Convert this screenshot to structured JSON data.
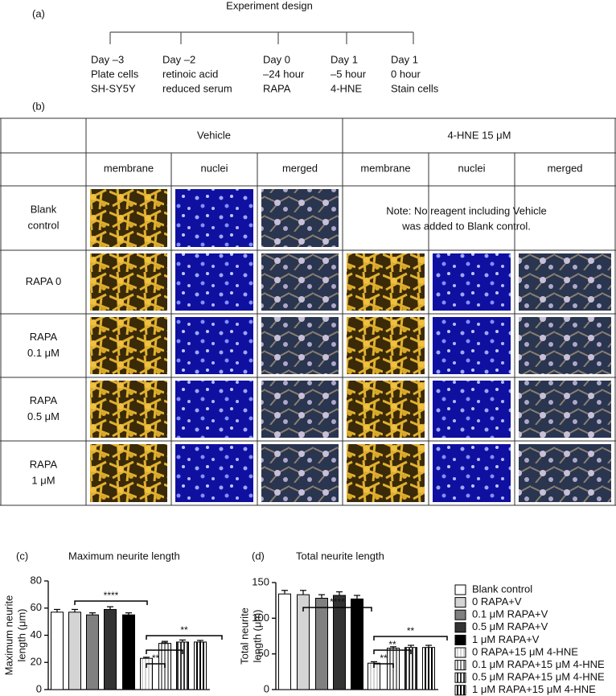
{
  "panel_a": {
    "label": "(a)",
    "title": "Experiment design",
    "steps": [
      [
        "Day –3",
        "Plate cells",
        "SH-SY5Y"
      ],
      [
        "Day –2",
        "retinoic acid",
        "reduced serum"
      ],
      [
        "Day 0",
        "–24 hour",
        "RAPA"
      ],
      [
        "Day 1",
        "–5 hour",
        "4-HNE"
      ],
      [
        "Day 1",
        "0 hour",
        "Stain cells"
      ]
    ]
  },
  "panel_b": {
    "label": "(b)",
    "groups": [
      "Vehicle",
      "4-HNE 15 μM"
    ],
    "channels": [
      "membrane",
      "nuclei",
      "merged"
    ],
    "rows": [
      [
        "Blank",
        "control"
      ],
      [
        "RAPA 0"
      ],
      [
        "RAPA",
        "0.1 μM"
      ],
      [
        "RAPA",
        "0.5 μM"
      ],
      [
        "RAPA",
        "1 μM"
      ]
    ],
    "note": [
      "Note: No reagent including Vehicle",
      "was added to Blank control."
    ]
  },
  "legend": [
    "Blank control",
    "0 RAPA+V",
    "0.1 μM RAPA+V",
    "0.5 μM RAPA+V",
    "1 μM RAPA+V",
    "0 RAPA+15 μM 4-HNE",
    "0.1 μM RAPA+15 μM 4-HNE",
    "0.5 μM RAPA+15 μM 4-HNE",
    "1 μM RAPA+15 μM 4-HNE"
  ],
  "chart_data": [
    {
      "type": "bar",
      "label": "(c)",
      "title": "Maximum neurite length",
      "ylabel": [
        "Maximum neurite",
        "length (μm)"
      ],
      "values": [
        57,
        57,
        55,
        59,
        55,
        23,
        34,
        35,
        35
      ],
      "errors": [
        2,
        2,
        1.5,
        2,
        1.5,
        0.8,
        1.5,
        1.5,
        1.2
      ],
      "colors": [
        "#ffffff",
        "#d4d4d4",
        "#808080",
        "#333333",
        "#000000",
        "#d4d4d4",
        "#808080",
        "#333333",
        "#000000"
      ],
      "hatched": [
        false,
        false,
        false,
        false,
        false,
        true,
        true,
        true,
        true
      ],
      "ylim": [
        0,
        80
      ],
      "yticks": [
        0,
        20,
        40,
        60,
        80
      ],
      "annotations": [
        "****",
        "**",
        "**",
        "**"
      ]
    },
    {
      "type": "bar",
      "label": "(d)",
      "title": "Total neurite length",
      "ylabel": [
        "Total neurite",
        "length (μm)"
      ],
      "values": [
        134,
        133,
        128,
        132,
        127,
        37,
        58,
        59,
        59
      ],
      "errors": [
        5,
        6,
        5,
        5,
        5,
        2,
        2,
        3,
        3
      ],
      "colors": [
        "#ffffff",
        "#d4d4d4",
        "#808080",
        "#333333",
        "#000000",
        "#d4d4d4",
        "#808080",
        "#333333",
        "#000000"
      ],
      "hatched": [
        false,
        false,
        false,
        false,
        false,
        true,
        true,
        true,
        true
      ],
      "ylim": [
        0,
        150
      ],
      "yticks": [
        0,
        50,
        100,
        150
      ],
      "annotations": [
        "****",
        "**",
        "**",
        "**"
      ]
    }
  ]
}
